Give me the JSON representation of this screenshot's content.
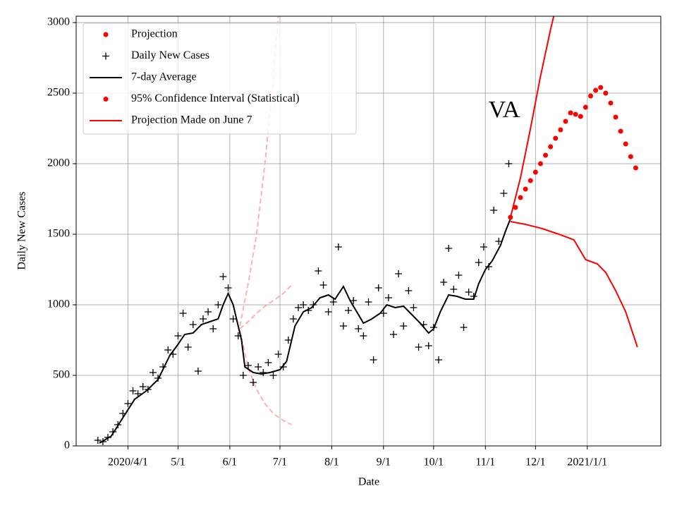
{
  "chart_data": {
    "type": "line",
    "annotation": "VA",
    "xlabel": "Date",
    "ylabel": "Daily New Cases",
    "xlim": [
      "2020-03-01",
      "2021-02-14"
    ],
    "xticks": [
      {
        "value": "2020-04-01",
        "label": "2020/4/1"
      },
      {
        "value": "2020-05-01",
        "label": "5/1"
      },
      {
        "value": "2020-06-01",
        "label": "6/1"
      },
      {
        "value": "2020-07-01",
        "label": "7/1"
      },
      {
        "value": "2020-08-01",
        "label": "8/1"
      },
      {
        "value": "2020-09-01",
        "label": "9/1"
      },
      {
        "value": "2020-10-01",
        "label": "10/1"
      },
      {
        "value": "2020-11-01",
        "label": "11/1"
      },
      {
        "value": "2020-12-01",
        "label": "12/1"
      },
      {
        "value": "2021-01-01",
        "label": "2021/1/1"
      }
    ],
    "ylim": [
      0,
      3045
    ],
    "yticks": [
      0,
      500,
      1000,
      1500,
      2000,
      2500,
      3000
    ],
    "grid": true,
    "legend": "upper left",
    "series": [
      {
        "name": "Projection",
        "color": "#ff0000",
        "style": "dots",
        "legend_marker": "dot",
        "x": [
          "2020-11-16",
          "2020-11-19",
          "2020-11-22",
          "2020-11-25",
          "2020-11-28",
          "2020-12-01",
          "2020-12-04",
          "2020-12-07",
          "2020-12-10",
          "2020-12-13",
          "2020-12-16",
          "2020-12-19",
          "2020-12-22",
          "2020-12-25",
          "2020-12-28",
          "2020-12-31",
          "2021-01-03",
          "2021-01-06",
          "2021-01-09",
          "2021-01-12",
          "2021-01-15",
          "2021-01-18",
          "2021-01-21",
          "2021-01-24",
          "2021-01-27",
          "2021-01-30"
        ],
        "values": [
          1620,
          1690,
          1760,
          1820,
          1880,
          1940,
          2000,
          2060,
          2120,
          2180,
          2240,
          2300,
          2360,
          2350,
          2335,
          2400,
          2480,
          2520,
          2540,
          2500,
          2430,
          2330,
          2230,
          2140,
          2050,
          1970
        ]
      },
      {
        "name": "Daily New Cases",
        "color": "#000000",
        "style": "plus",
        "legend_marker": "plus",
        "x": [
          "2020-03-14",
          "2020-03-17",
          "2020-03-20",
          "2020-03-23",
          "2020-03-26",
          "2020-03-29",
          "2020-04-01",
          "2020-04-04",
          "2020-04-07",
          "2020-04-10",
          "2020-04-13",
          "2020-04-16",
          "2020-04-19",
          "2020-04-22",
          "2020-04-25",
          "2020-04-28",
          "2020-05-01",
          "2020-05-04",
          "2020-05-07",
          "2020-05-10",
          "2020-05-13",
          "2020-05-16",
          "2020-05-19",
          "2020-05-22",
          "2020-05-25",
          "2020-05-28",
          "2020-05-31",
          "2020-06-03",
          "2020-06-06",
          "2020-06-09",
          "2020-06-12",
          "2020-06-15",
          "2020-06-18",
          "2020-06-21",
          "2020-06-24",
          "2020-06-27",
          "2020-06-30",
          "2020-07-03",
          "2020-07-06",
          "2020-07-09",
          "2020-07-12",
          "2020-07-15",
          "2020-07-18",
          "2020-07-21",
          "2020-07-24",
          "2020-07-27",
          "2020-07-30",
          "2020-08-02",
          "2020-08-05",
          "2020-08-08",
          "2020-08-11",
          "2020-08-14",
          "2020-08-17",
          "2020-08-20",
          "2020-08-23",
          "2020-08-26",
          "2020-08-29",
          "2020-09-01",
          "2020-09-04",
          "2020-09-07",
          "2020-09-10",
          "2020-09-13",
          "2020-09-16",
          "2020-09-19",
          "2020-09-22",
          "2020-09-25",
          "2020-09-28",
          "2020-10-01",
          "2020-10-04",
          "2020-10-07",
          "2020-10-10",
          "2020-10-13",
          "2020-10-16",
          "2020-10-19",
          "2020-10-22",
          "2020-10-25",
          "2020-10-28",
          "2020-10-31",
          "2020-11-03",
          "2020-11-06",
          "2020-11-09",
          "2020-11-12",
          "2020-11-15"
        ],
        "values": [
          40,
          30,
          60,
          100,
          150,
          230,
          300,
          390,
          370,
          420,
          400,
          520,
          480,
          560,
          680,
          650,
          780,
          940,
          700,
          860,
          530,
          900,
          950,
          830,
          1000,
          1200,
          1120,
          900,
          780,
          500,
          570,
          450,
          560,
          520,
          590,
          500,
          650,
          560,
          750,
          900,
          980,
          1000,
          960,
          1000,
          1240,
          1140,
          950,
          1020,
          1410,
          850,
          960,
          1030,
          830,
          780,
          1020,
          610,
          1120,
          940,
          1050,
          790,
          1220,
          850,
          1100,
          980,
          700,
          860,
          710,
          840,
          610,
          1160,
          1400,
          1110,
          1210,
          840,
          1090,
          1060,
          1300,
          1410,
          1270,
          1670,
          1450,
          1790,
          2000
        ]
      },
      {
        "name": "7-day Average",
        "color": "#000000",
        "style": "line",
        "legend_marker": "line",
        "x": [
          "2020-03-15",
          "2020-03-22",
          "2020-03-29",
          "2020-04-05",
          "2020-04-12",
          "2020-04-19",
          "2020-04-26",
          "2020-05-01",
          "2020-05-05",
          "2020-05-10",
          "2020-05-15",
          "2020-05-20",
          "2020-05-25",
          "2020-05-28",
          "2020-05-31",
          "2020-06-03",
          "2020-06-06",
          "2020-06-08",
          "2020-06-10",
          "2020-06-15",
          "2020-06-20",
          "2020-06-25",
          "2020-07-01",
          "2020-07-05",
          "2020-07-10",
          "2020-07-15",
          "2020-07-20",
          "2020-07-25",
          "2020-07-30",
          "2020-08-03",
          "2020-08-08",
          "2020-08-12",
          "2020-08-16",
          "2020-08-20",
          "2020-08-25",
          "2020-08-30",
          "2020-09-03",
          "2020-09-08",
          "2020-09-13",
          "2020-09-18",
          "2020-09-23",
          "2020-09-28",
          "2020-10-01",
          "2020-10-05",
          "2020-10-10",
          "2020-10-15",
          "2020-10-20",
          "2020-10-25",
          "2020-10-28",
          "2020-11-01",
          "2020-11-05",
          "2020-11-10",
          "2020-11-13",
          "2020-11-16"
        ],
        "values": [
          20,
          70,
          200,
          330,
          390,
          470,
          640,
          720,
          790,
          800,
          860,
          880,
          900,
          1000,
          1080,
          1000,
          850,
          750,
          560,
          520,
          510,
          520,
          540,
          600,
          850,
          950,
          980,
          1050,
          1070,
          1040,
          1130,
          1030,
          950,
          870,
          900,
          940,
          1000,
          980,
          990,
          930,
          870,
          800,
          830,
          950,
          1070,
          1060,
          1040,
          1040,
          1150,
          1250,
          1310,
          1420,
          1520,
          1610
        ]
      },
      {
        "name": "95% Confidence Interval (Statistical)",
        "color": "#ff0000",
        "style": "line",
        "legend_marker": "dot",
        "x": [
          "2020-11-16",
          "2020-11-22",
          "2020-11-28",
          "2020-12-04",
          "2020-12-10",
          "2020-12-14"
        ],
        "values": [
          1620,
          1900,
          2250,
          2620,
          2950,
          3150
        ]
      },
      {
        "color": "#ff0000",
        "style": "line",
        "x": [
          "2020-11-16",
          "2020-11-25",
          "2020-12-05",
          "2020-12-15",
          "2020-12-24",
          "2020-12-31",
          "2021-01-07",
          "2021-01-12",
          "2021-01-18",
          "2021-01-24",
          "2021-01-31"
        ],
        "values": [
          1590,
          1570,
          1540,
          1500,
          1460,
          1320,
          1290,
          1230,
          1100,
          950,
          700
        ]
      },
      {
        "name": "Projection Made on June 7",
        "color": "#ffb0b0",
        "style": "dashed",
        "legend_marker": "line",
        "legend_color": "#ff0000",
        "x": [
          "2020-06-07",
          "2020-06-12",
          "2020-06-17",
          "2020-06-22",
          "2020-06-27",
          "2020-07-03",
          "2020-07-08"
        ],
        "values": [
          830,
          880,
          940,
          990,
          1030,
          1080,
          1140
        ]
      },
      {
        "color": "#ffb0b0",
        "style": "dashed",
        "x": [
          "2020-06-07",
          "2020-06-12",
          "2020-06-17",
          "2020-06-22",
          "2020-06-27",
          "2020-07-01"
        ],
        "values": [
          850,
          1150,
          1500,
          2000,
          2600,
          3200
        ]
      },
      {
        "color": "#ffb0b0",
        "style": "dashed",
        "x": [
          "2020-06-07",
          "2020-06-12",
          "2020-06-17",
          "2020-06-22",
          "2020-06-27",
          "2020-07-03",
          "2020-07-08"
        ],
        "values": [
          820,
          550,
          400,
          300,
          230,
          180,
          150
        ]
      }
    ]
  }
}
